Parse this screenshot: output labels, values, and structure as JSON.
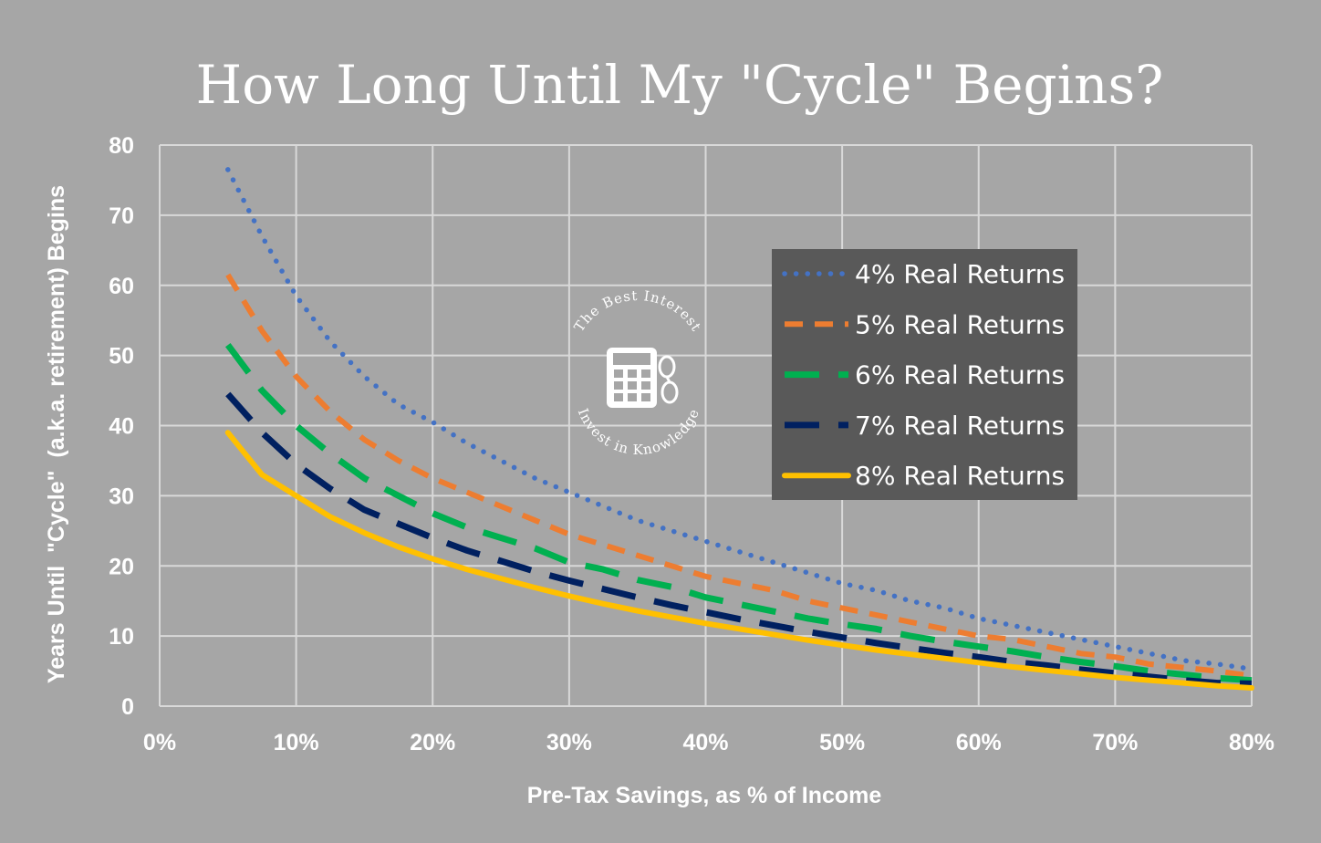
{
  "chart_data": {
    "type": "line",
    "title": "How Long Until My \"Cycle\" Begins?",
    "xlabel": "Pre-Tax Savings, as % of Income",
    "ylabel": "Years Until  \"Cycle\"  (a.k.a. retirement) Begins",
    "xlim": [
      0,
      80
    ],
    "ylim": [
      0,
      80
    ],
    "x_ticks": [
      "0%",
      "10%",
      "20%",
      "30%",
      "40%",
      "50%",
      "60%",
      "70%",
      "80%"
    ],
    "y_ticks": [
      "0",
      "10",
      "20",
      "30",
      "40",
      "50",
      "60",
      "70",
      "80"
    ],
    "grid": true,
    "legend_position": "center-right",
    "x": [
      5,
      7.5,
      10,
      12.5,
      15,
      17.5,
      20,
      22.5,
      25,
      27.5,
      30,
      32.5,
      35,
      37.5,
      40,
      42.5,
      45,
      47.5,
      50,
      52.5,
      55,
      57.5,
      60,
      62.5,
      65,
      67.5,
      70,
      72.5,
      75,
      77.5,
      80
    ],
    "series": [
      {
        "name": "4% Real Returns",
        "color": "#4472c4",
        "style": "dotted",
        "values": [
          76.5,
          67,
          58.5,
          52,
          47,
          43,
          40.5,
          37.5,
          35,
          32.5,
          30.5,
          28.5,
          26.5,
          25,
          23.5,
          22,
          20.5,
          19,
          17.5,
          16.5,
          15,
          14,
          12.5,
          11.5,
          10.5,
          9.5,
          8.5,
          7.5,
          6.5,
          6,
          5.3
        ]
      },
      {
        "name": "5% Real Returns",
        "color": "#ed7d31",
        "style": "dashed",
        "values": [
          61.5,
          53.5,
          47,
          42,
          38,
          35,
          32.5,
          30.5,
          28.5,
          26.5,
          24.5,
          23,
          21.5,
          20,
          18.5,
          17.5,
          16.5,
          15,
          14,
          13,
          12,
          11,
          10,
          9.5,
          8.5,
          7.5,
          7,
          6,
          5.5,
          5,
          4.3
        ]
      },
      {
        "name": "6% Real Returns",
        "color": "#00b050",
        "style": "longdash",
        "values": [
          51.5,
          45,
          40,
          36,
          32.5,
          30,
          27.5,
          25.5,
          24,
          22.5,
          20.5,
          19.5,
          18,
          17,
          15.5,
          14.5,
          13.5,
          12.5,
          11.7,
          11,
          10,
          9.2,
          8.5,
          7.8,
          7,
          6.3,
          5.7,
          5,
          4.5,
          4,
          3.7
        ]
      },
      {
        "name": "7% Real Returns",
        "color": "#002060",
        "style": "longdash",
        "values": [
          44.5,
          39,
          34.5,
          31,
          28,
          26,
          24,
          22.2,
          20.7,
          19.2,
          17.9,
          16.7,
          15.5,
          14.4,
          13.4,
          12.4,
          11.5,
          10.6,
          9.8,
          9,
          8.3,
          7.6,
          7,
          6.3,
          5.8,
          5.2,
          4.7,
          4.2,
          3.7,
          3.3,
          3.2
        ]
      },
      {
        "name": "8% Real Returns",
        "color": "#ffc000",
        "style": "solid",
        "values": [
          39,
          33,
          30,
          27,
          24.7,
          22.7,
          21,
          19.5,
          18.2,
          16.9,
          15.7,
          14.6,
          13.6,
          12.7,
          11.8,
          11,
          10.2,
          9.4,
          8.7,
          8,
          7.4,
          6.8,
          6.2,
          5.6,
          5.1,
          4.6,
          4.1,
          3.7,
          3.3,
          2.9,
          2.6
        ]
      }
    ]
  },
  "watermark": {
    "top_text": "The Best Interest",
    "bottom_text": "Invest in Knowledge",
    "icon": "calculator-icon"
  }
}
